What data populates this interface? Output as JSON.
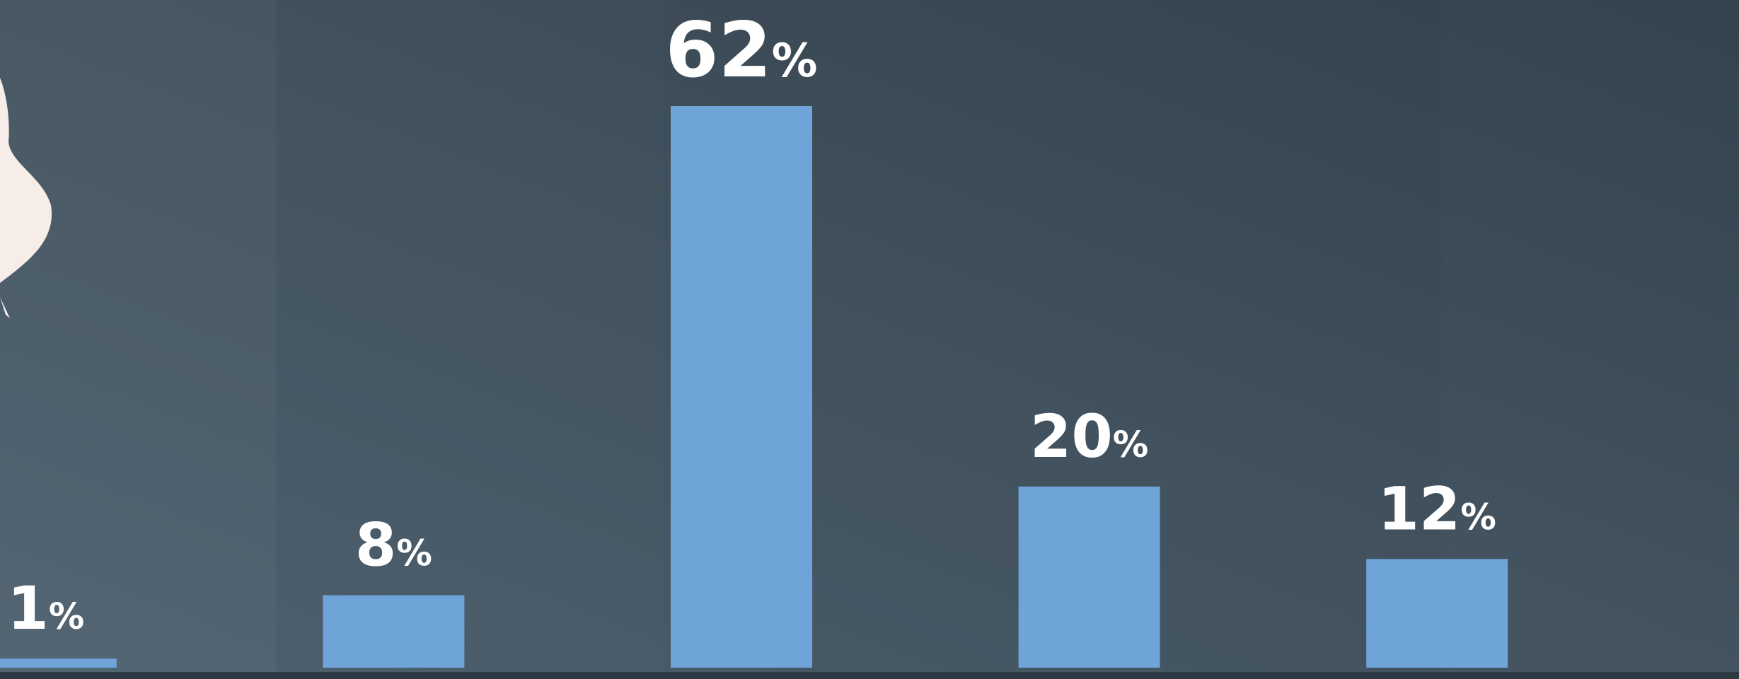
{
  "chart_data": {
    "type": "bar",
    "categories": [
      null,
      null,
      null,
      null,
      null
    ],
    "values": [
      1,
      8,
      62,
      20,
      12
    ],
    "value_labels": [
      "1%",
      "8%",
      "62%",
      "20%",
      "12%"
    ],
    "color": "#6fa4d8"
  }
}
